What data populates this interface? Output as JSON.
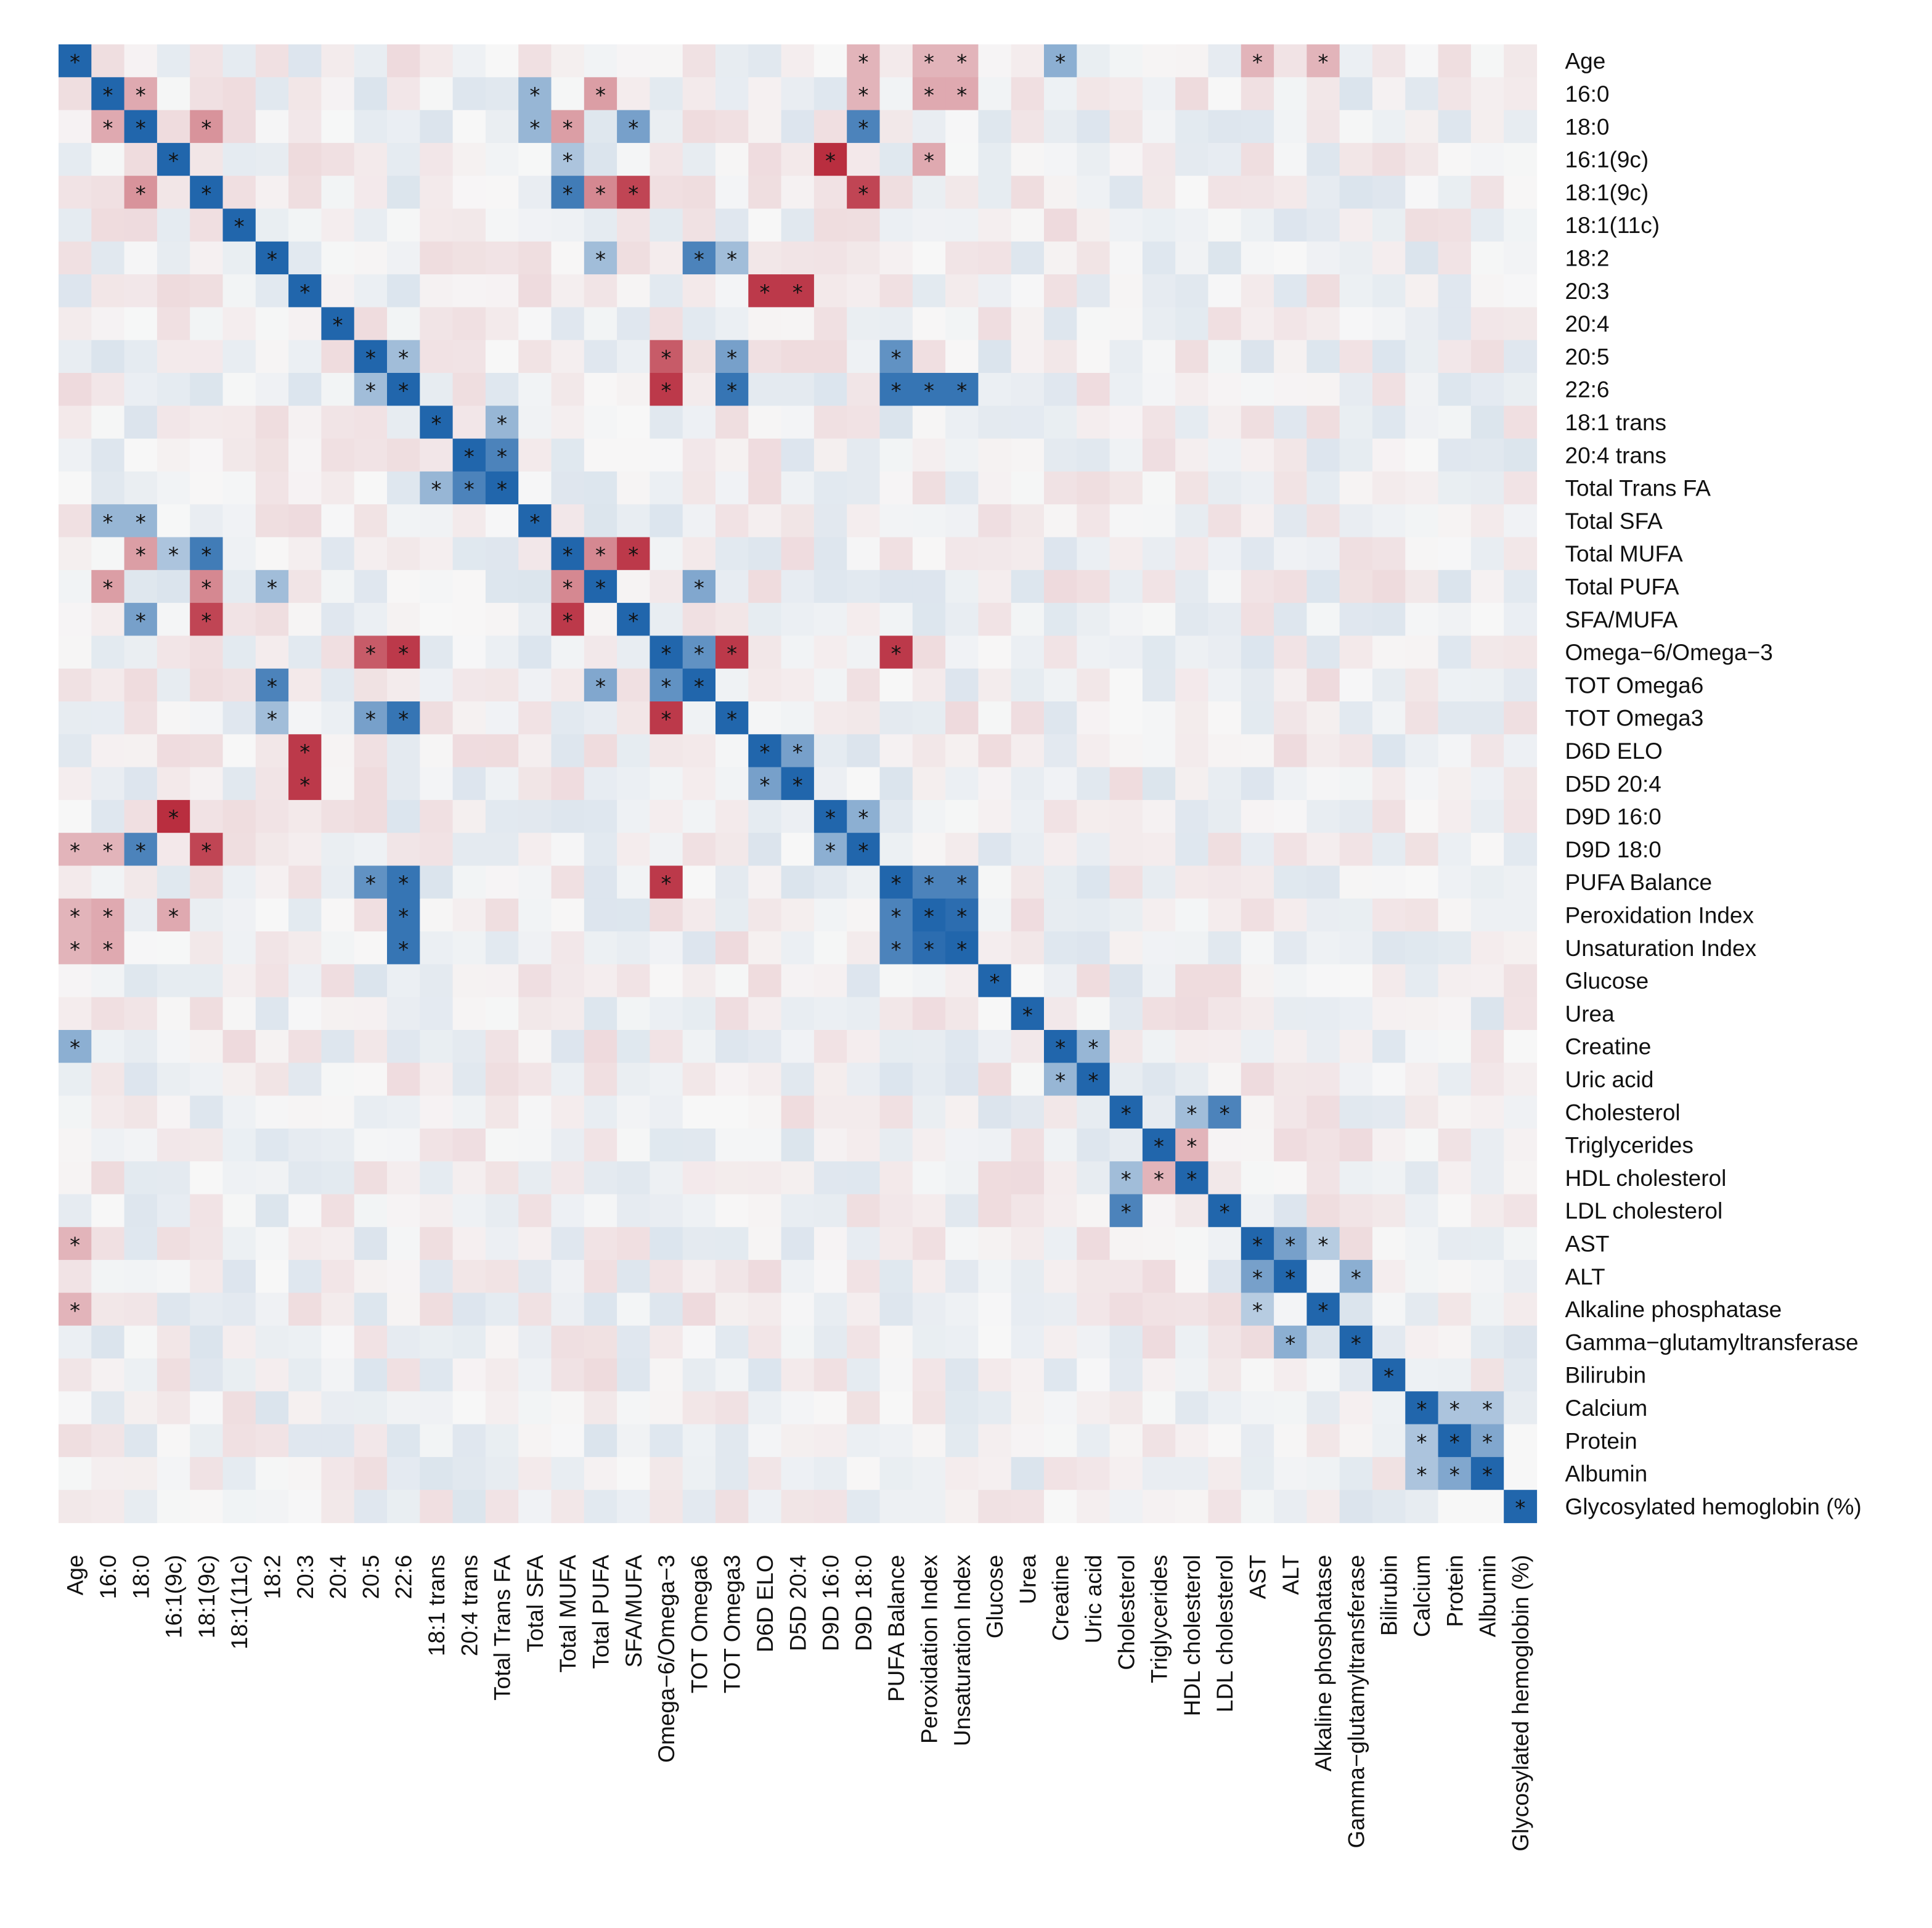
{
  "chart_data": {
    "type": "heatmap",
    "title": "",
    "colormap": {
      "negative": "#b2182b",
      "zero": "#f7f7f7",
      "positive": "#2166ac"
    },
    "value_range": [
      -1,
      1
    ],
    "significance_marker": "*",
    "variables": [
      "Age",
      "16:0",
      "18:0",
      "16:1(9c)",
      "18:1(9c)",
      "18:1(11c)",
      "18:2",
      "20:3",
      "20:4",
      "20:5",
      "22:6",
      "18:1 trans",
      "20:4 trans",
      "Total Trans FA",
      "Total SFA",
      "Total MUFA",
      "Total PUFA",
      "SFA/MUFA",
      "Omega−6/Omega−3",
      "TOT Omega6",
      "TOT Omega3",
      "D6D ELO",
      "D5D 20:4",
      "D9D 16:0",
      "D9D 18:0",
      "PUFA Balance",
      "Peroxidation Index",
      "Unsaturation Index",
      "Glucose",
      "Urea",
      "Creatine",
      "Uric acid",
      "Cholesterol",
      "Triglycerides",
      "HDL cholesterol",
      "LDL cholesterol",
      "AST",
      "ALT",
      "Alkaline phosphatase",
      "Gamma−glutamyltransferase",
      "Bilirubin",
      "Calcium",
      "Protein",
      "Albumin",
      "Glycosylated hemoglobin (%)"
    ],
    "strong_pairs": [
      {
        "a": 0,
        "b": 24,
        "r": -0.3,
        "sig": true
      },
      {
        "a": 0,
        "b": 26,
        "r": -0.3,
        "sig": true
      },
      {
        "a": 0,
        "b": 27,
        "r": -0.3,
        "sig": true
      },
      {
        "a": 0,
        "b": 30,
        "r": 0.5,
        "sig": true
      },
      {
        "a": 0,
        "b": 36,
        "r": -0.3,
        "sig": true
      },
      {
        "a": 0,
        "b": 38,
        "r": -0.3,
        "sig": true
      },
      {
        "a": 1,
        "b": 2,
        "r": -0.35,
        "sig": true
      },
      {
        "a": 1,
        "b": 14,
        "r": 0.45,
        "sig": true
      },
      {
        "a": 1,
        "b": 16,
        "r": -0.4,
        "sig": true
      },
      {
        "a": 1,
        "b": 24,
        "r": -0.3,
        "sig": true
      },
      {
        "a": 1,
        "b": 26,
        "r": -0.35,
        "sig": true
      },
      {
        "a": 1,
        "b": 27,
        "r": -0.35,
        "sig": true
      },
      {
        "a": 2,
        "b": 4,
        "r": -0.45,
        "sig": true
      },
      {
        "a": 2,
        "b": 14,
        "r": 0.45,
        "sig": true
      },
      {
        "a": 2,
        "b": 15,
        "r": -0.4,
        "sig": true
      },
      {
        "a": 2,
        "b": 17,
        "r": 0.6,
        "sig": true
      },
      {
        "a": 2,
        "b": 24,
        "r": 0.8,
        "sig": true
      },
      {
        "a": 3,
        "b": 15,
        "r": 0.35,
        "sig": true
      },
      {
        "a": 3,
        "b": 23,
        "r": -0.9,
        "sig": true
      },
      {
        "a": 3,
        "b": 26,
        "r": -0.35,
        "sig": true
      },
      {
        "a": 4,
        "b": 15,
        "r": 0.85,
        "sig": true
      },
      {
        "a": 4,
        "b": 16,
        "r": -0.5,
        "sig": true
      },
      {
        "a": 4,
        "b": 17,
        "r": -0.8,
        "sig": true
      },
      {
        "a": 4,
        "b": 24,
        "r": -0.8,
        "sig": true
      },
      {
        "a": 6,
        "b": 19,
        "r": 0.8,
        "sig": true
      },
      {
        "a": 6,
        "b": 20,
        "r": 0.4,
        "sig": true
      },
      {
        "a": 6,
        "b": 16,
        "r": 0.4,
        "sig": true
      },
      {
        "a": 7,
        "b": 21,
        "r": -0.85,
        "sig": true
      },
      {
        "a": 7,
        "b": 22,
        "r": -0.85,
        "sig": true
      },
      {
        "a": 9,
        "b": 10,
        "r": 0.4,
        "sig": true
      },
      {
        "a": 9,
        "b": 18,
        "r": -0.7,
        "sig": true
      },
      {
        "a": 9,
        "b": 20,
        "r": 0.6,
        "sig": true
      },
      {
        "a": 9,
        "b": 25,
        "r": 0.7,
        "sig": true
      },
      {
        "a": 10,
        "b": 18,
        "r": -0.85,
        "sig": true
      },
      {
        "a": 10,
        "b": 20,
        "r": 0.9,
        "sig": true
      },
      {
        "a": 10,
        "b": 25,
        "r": 0.9,
        "sig": true
      },
      {
        "a": 10,
        "b": 26,
        "r": 0.9,
        "sig": true
      },
      {
        "a": 10,
        "b": 27,
        "r": 0.9,
        "sig": true
      },
      {
        "a": 11,
        "b": 13,
        "r": 0.45,
        "sig": true
      },
      {
        "a": 12,
        "b": 13,
        "r": 0.8,
        "sig": true
      },
      {
        "a": 15,
        "b": 16,
        "r": -0.5,
        "sig": true
      },
      {
        "a": 15,
        "b": 17,
        "r": -0.85,
        "sig": true
      },
      {
        "a": 16,
        "b": 19,
        "r": 0.55,
        "sig": true
      },
      {
        "a": 18,
        "b": 19,
        "r": 0.7,
        "sig": true
      },
      {
        "a": 18,
        "b": 20,
        "r": -0.85,
        "sig": true
      },
      {
        "a": 18,
        "b": 25,
        "r": -0.85,
        "sig": true
      },
      {
        "a": 21,
        "b": 22,
        "r": 0.6,
        "sig": true
      },
      {
        "a": 23,
        "b": 24,
        "r": 0.5,
        "sig": true
      },
      {
        "a": 25,
        "b": 26,
        "r": 0.8,
        "sig": true
      },
      {
        "a": 25,
        "b": 27,
        "r": 0.8,
        "sig": true
      },
      {
        "a": 26,
        "b": 27,
        "r": 0.95,
        "sig": true
      },
      {
        "a": 30,
        "b": 31,
        "r": 0.45,
        "sig": true
      },
      {
        "a": 32,
        "b": 34,
        "r": 0.4,
        "sig": true
      },
      {
        "a": 32,
        "b": 35,
        "r": 0.8,
        "sig": true
      },
      {
        "a": 33,
        "b": 34,
        "r": -0.3,
        "sig": true
      },
      {
        "a": 36,
        "b": 37,
        "r": 0.6,
        "sig": true
      },
      {
        "a": 36,
        "b": 38,
        "r": 0.3,
        "sig": true
      },
      {
        "a": 37,
        "b": 39,
        "r": 0.5,
        "sig": true
      },
      {
        "a": 41,
        "b": 42,
        "r": 0.35,
        "sig": true
      },
      {
        "a": 41,
        "b": 43,
        "r": 0.35,
        "sig": true
      },
      {
        "a": 42,
        "b": 43,
        "r": 0.55,
        "sig": true
      }
    ]
  }
}
